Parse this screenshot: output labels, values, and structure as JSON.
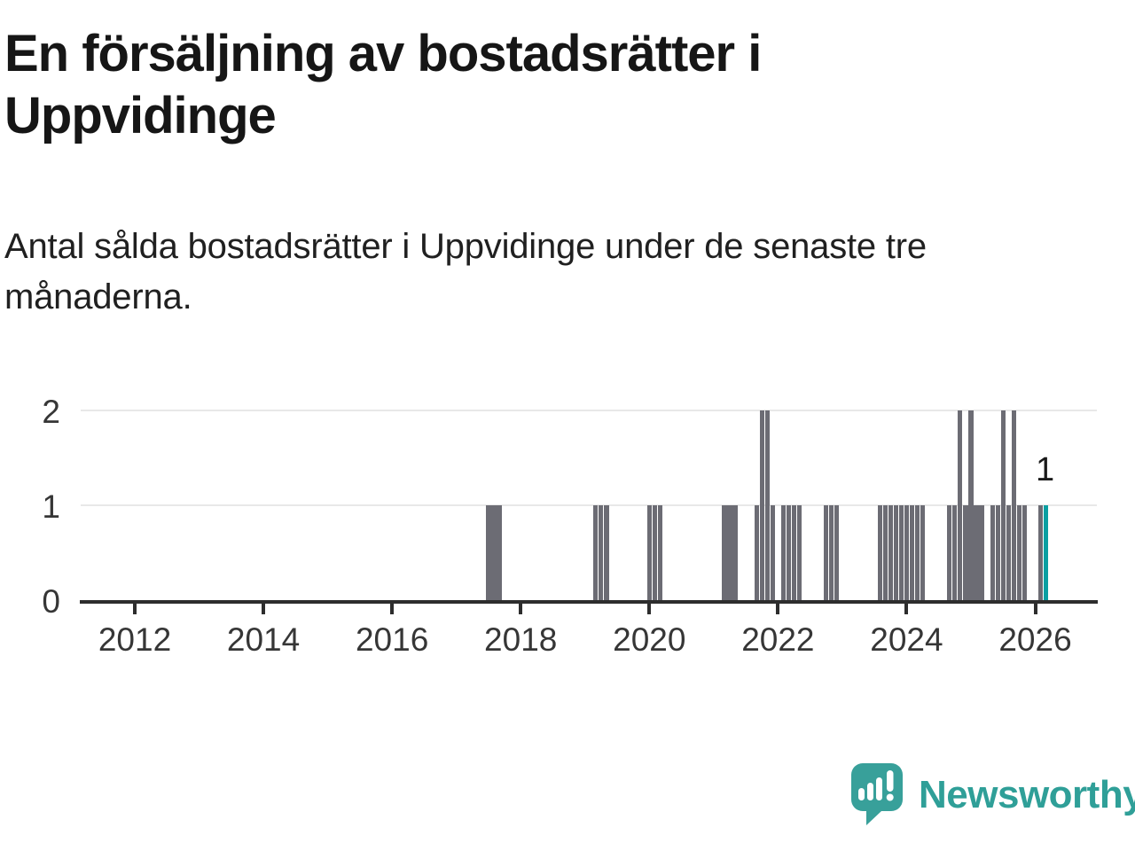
{
  "title": "En försäljning av bostadsrätter i Uppvidinge",
  "subtitle": "Antal sålda bostadsrätter i Uppvidinge under de senaste tre månaderna.",
  "logo": {
    "text": "Newsworthy"
  },
  "colors": {
    "bar": "#6c6c74",
    "highlight": "#0a9fa2",
    "grid": "#e8e8e8",
    "axis": "#2d2d2d",
    "logo_teal": "#38a09a",
    "logo_text_teal": "#2f9f98"
  },
  "chart_data": {
    "type": "bar",
    "title": "En försäljning av bostadsrätter i Uppvidinge",
    "subtitle": "Antal sålda bostadsrätter i Uppvidinge under de senaste tre månaderna.",
    "xlabel": "",
    "ylabel": "",
    "x_unit": "month",
    "x_range": [
      "2011-01",
      "2027-01"
    ],
    "ylim": [
      0,
      2
    ],
    "y_tick_labels": [
      "0",
      "1",
      "2"
    ],
    "y_gridlines": [
      1,
      2
    ],
    "x_tick_labels": [
      "2012",
      "2014",
      "2016",
      "2018",
      "2020",
      "2022",
      "2024",
      "2026"
    ],
    "grid": "horizontal-only",
    "legend": "none",
    "highlight_month": "2026-03",
    "highlight_value_label": "1",
    "points": [
      {
        "month": "2017-07",
        "value": 1
      },
      {
        "month": "2017-08",
        "value": 1
      },
      {
        "month": "2017-09",
        "value": 1
      },
      {
        "month": "2019-03",
        "value": 1
      },
      {
        "month": "2019-04",
        "value": 1
      },
      {
        "month": "2019-05",
        "value": 1
      },
      {
        "month": "2020-01",
        "value": 1
      },
      {
        "month": "2020-02",
        "value": 1
      },
      {
        "month": "2020-03",
        "value": 1
      },
      {
        "month": "2021-03",
        "value": 1
      },
      {
        "month": "2021-04",
        "value": 1
      },
      {
        "month": "2021-05",
        "value": 1
      },
      {
        "month": "2021-09",
        "value": 1
      },
      {
        "month": "2021-10",
        "value": 2
      },
      {
        "month": "2021-11",
        "value": 2
      },
      {
        "month": "2021-12",
        "value": 1
      },
      {
        "month": "2022-02",
        "value": 1
      },
      {
        "month": "2022-03",
        "value": 1
      },
      {
        "month": "2022-04",
        "value": 1
      },
      {
        "month": "2022-05",
        "value": 1
      },
      {
        "month": "2022-10",
        "value": 1
      },
      {
        "month": "2022-11",
        "value": 1
      },
      {
        "month": "2022-12",
        "value": 1
      },
      {
        "month": "2023-08",
        "value": 1
      },
      {
        "month": "2023-09",
        "value": 1
      },
      {
        "month": "2023-10",
        "value": 1
      },
      {
        "month": "2023-11",
        "value": 1
      },
      {
        "month": "2023-12",
        "value": 1
      },
      {
        "month": "2024-01",
        "value": 1
      },
      {
        "month": "2024-02",
        "value": 1
      },
      {
        "month": "2024-03",
        "value": 1
      },
      {
        "month": "2024-04",
        "value": 1
      },
      {
        "month": "2024-09",
        "value": 1
      },
      {
        "month": "2024-10",
        "value": 1
      },
      {
        "month": "2024-11",
        "value": 2
      },
      {
        "month": "2024-12",
        "value": 1
      },
      {
        "month": "2025-01",
        "value": 2
      },
      {
        "month": "2025-02",
        "value": 1
      },
      {
        "month": "2025-03",
        "value": 1
      },
      {
        "month": "2025-05",
        "value": 1
      },
      {
        "month": "2025-06",
        "value": 1
      },
      {
        "month": "2025-07",
        "value": 2
      },
      {
        "month": "2025-08",
        "value": 1
      },
      {
        "month": "2025-09",
        "value": 2
      },
      {
        "month": "2025-10",
        "value": 1
      },
      {
        "month": "2025-11",
        "value": 1
      },
      {
        "month": "2026-02",
        "value": 1
      },
      {
        "month": "2026-03",
        "value": 1
      }
    ]
  }
}
